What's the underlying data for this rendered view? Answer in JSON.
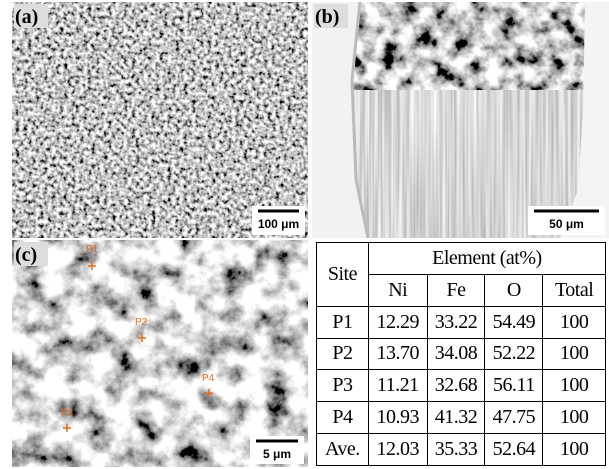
{
  "panels": [
    {
      "label": "(a)",
      "scale_bar": "100 μm"
    },
    {
      "label": "(b)",
      "scale_bar": "50 μm"
    },
    {
      "label": "(c)",
      "scale_bar": "5 μm",
      "points": [
        "P1",
        "P2",
        "P3",
        "P4"
      ]
    }
  ],
  "table": {
    "header": {
      "site": "Site",
      "group": "Element (at%)",
      "columns": [
        "Ni",
        "Fe",
        "O",
        "Total"
      ]
    },
    "rows": [
      [
        "P1",
        "12.29",
        "33.22",
        "54.49",
        "100"
      ],
      [
        "P2",
        "13.70",
        "34.08",
        "52.22",
        "100"
      ],
      [
        "P3",
        "11.21",
        "32.68",
        "56.11",
        "100"
      ],
      [
        "P4",
        "10.93",
        "41.32",
        "47.75",
        "100"
      ],
      [
        "Ave.",
        "12.03",
        "35.33",
        "52.64",
        "100"
      ]
    ]
  }
}
